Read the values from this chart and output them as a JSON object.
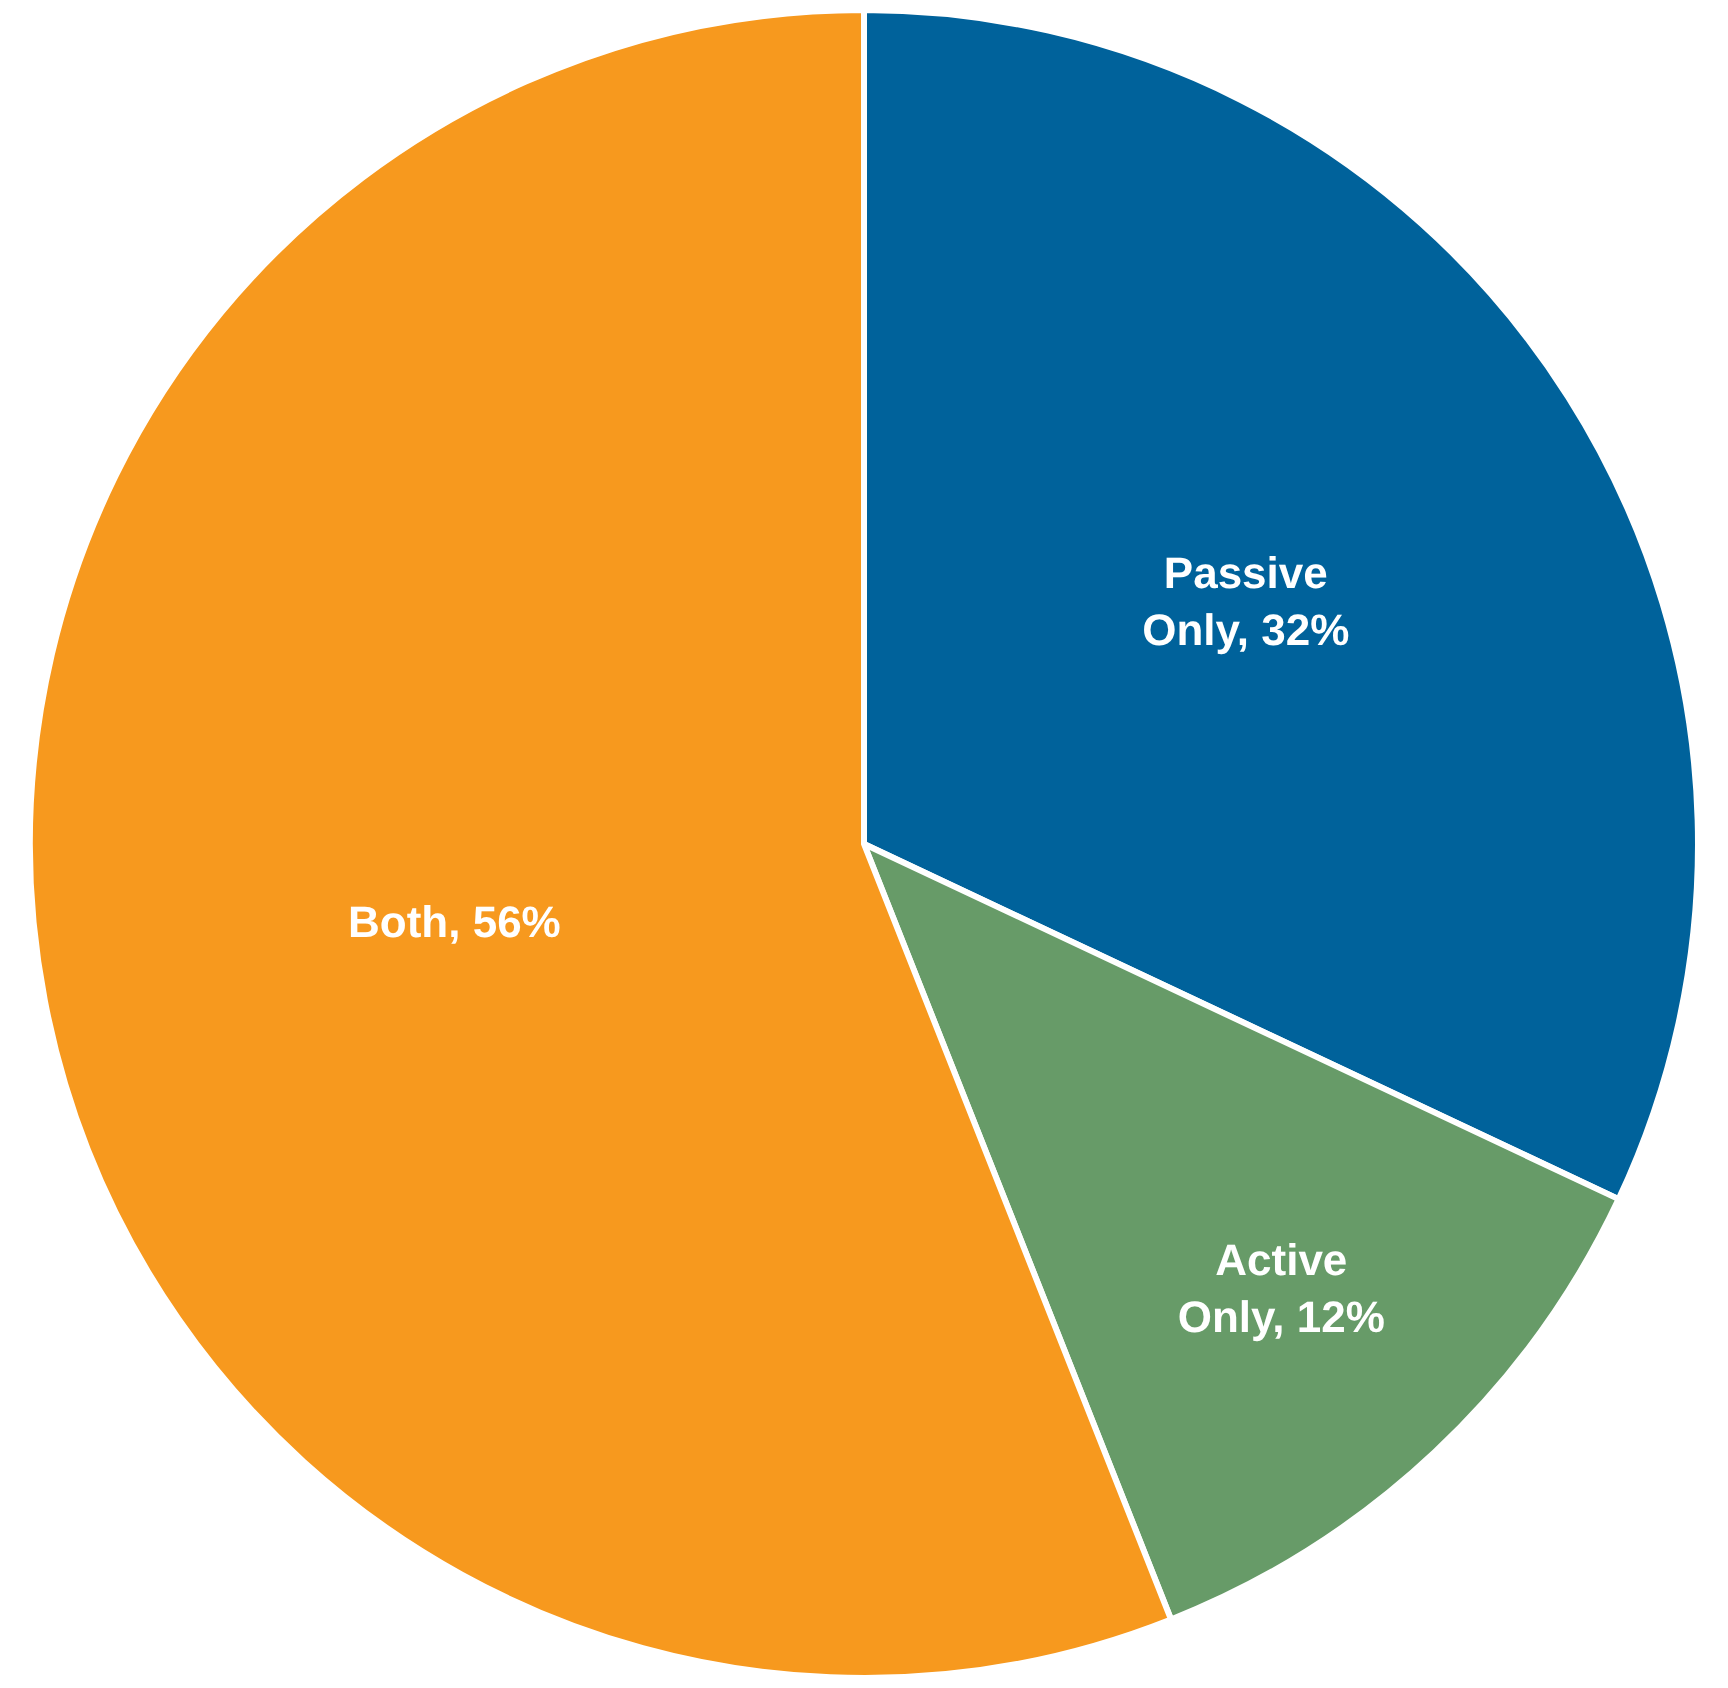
{
  "chart_data": {
    "type": "pie",
    "categories": [
      "Passive Only",
      "Active Only",
      "Both"
    ],
    "values": [
      32,
      12,
      56
    ],
    "colors": [
      "#00629b",
      "#679b68",
      "#f7991e"
    ],
    "value_labels": [
      "32%",
      "12%",
      "56%"
    ],
    "legend": false
  }
}
